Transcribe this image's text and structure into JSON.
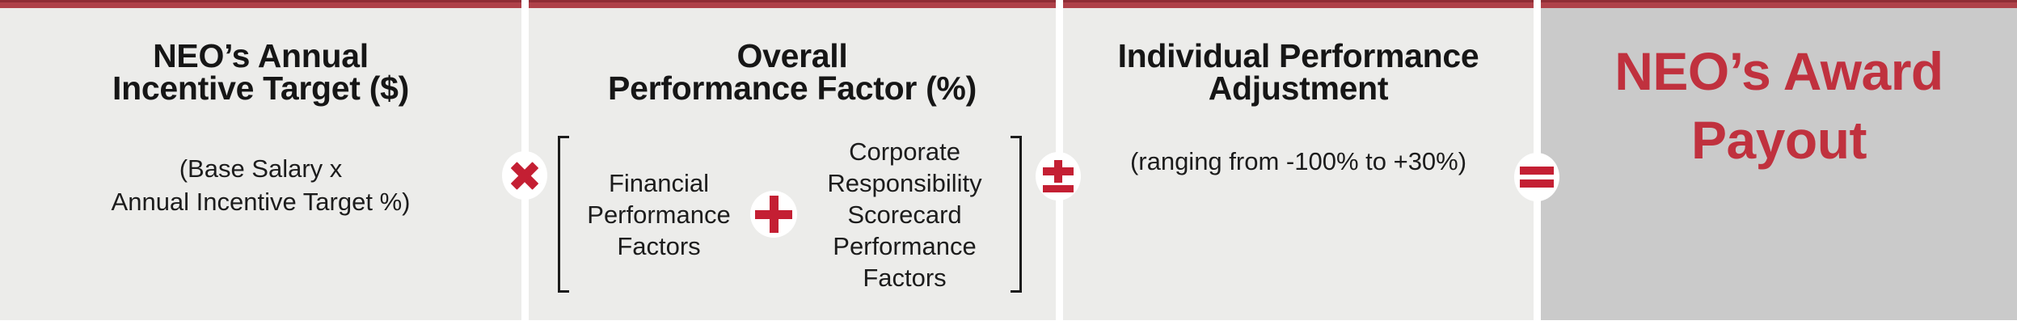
{
  "panels": [
    {
      "id": "annual-incentive-target",
      "title_lines": [
        "NEO’s Annual",
        "Incentive Target ($)"
      ],
      "body_lines": [
        "(Base Salary x",
        "Annual Incentive Target %)"
      ]
    },
    {
      "id": "overall-performance-factor",
      "title_lines": [
        "Overall",
        "Performance Factor (%)"
      ],
      "bracket": {
        "financial_lines": [
          "Financial",
          "Performance",
          "Factors"
        ],
        "operator": "+",
        "corporate_lines": [
          "Corporate",
          "Responsibility",
          "Scorecard",
          "Performance",
          "Factors"
        ]
      }
    },
    {
      "id": "individual-performance-adjustment",
      "title_lines": [
        "Individual Performance",
        "Adjustment"
      ],
      "body_lines": [
        "(ranging from -100% to +30%)"
      ]
    },
    {
      "id": "award-payout",
      "title_lines": [
        "NEO’s Award",
        "Payout"
      ]
    }
  ],
  "operators": {
    "multiply": "×",
    "plus": "+",
    "plus_minus": "±",
    "equals": "="
  },
  "colors": {
    "operator_red": "#C41F33",
    "top_bar_red": "#AF4149",
    "panel_gray": "#ECECEA",
    "result_panel_gray": "#CACACA",
    "award_text_red": "#C0313E",
    "text_ink": "#161616"
  }
}
